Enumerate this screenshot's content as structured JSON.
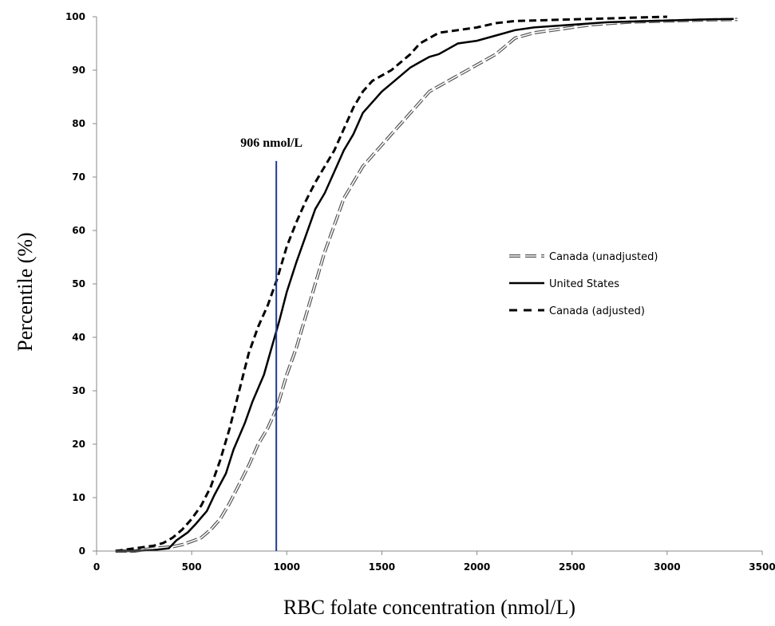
{
  "chart_data": {
    "type": "line",
    "title": "",
    "xlabel": "RBC folate concentration (nmol/L)",
    "ylabel": "Percentile (%)",
    "xlim": [
      0,
      3500
    ],
    "ylim": [
      0,
      100
    ],
    "xticks": [
      0,
      500,
      1000,
      1500,
      2000,
      2500,
      3000,
      3500
    ],
    "yticks": [
      0,
      10,
      20,
      30,
      40,
      50,
      60,
      70,
      80,
      90,
      100
    ],
    "grid": false,
    "legend_placement": "right",
    "annotation": {
      "label": "906 nmol/L",
      "x": 945,
      "y_top": 73,
      "color": "#1f3a93"
    },
    "series": [
      {
        "name": "Canada (unadjusted)",
        "style": "double-dashed",
        "color": "#555555",
        "x": [
          100,
          200,
          300,
          400,
          450,
          500,
          550,
          600,
          650,
          700,
          750,
          800,
          850,
          900,
          950,
          1000,
          1050,
          1100,
          1150,
          1200,
          1250,
          1300,
          1350,
          1400,
          1450,
          1500,
          1550,
          1600,
          1650,
          1700,
          1750,
          1800,
          1850,
          1900,
          1950,
          2000,
          2050,
          2100,
          2150,
          2200,
          2300,
          2400,
          2500,
          2600,
          2800,
          3000,
          3200,
          3370
        ],
        "y": [
          0,
          0,
          0.5,
          0.8,
          1.2,
          1.8,
          2.5,
          4,
          6,
          9,
          12.5,
          16,
          20,
          23,
          27,
          33,
          38,
          44,
          50,
          56,
          61,
          66,
          69,
          72,
          74,
          76,
          78,
          80,
          82,
          84,
          86,
          87,
          88,
          89,
          90,
          91,
          92,
          93,
          94.5,
          96,
          97,
          97.5,
          98,
          98.5,
          99,
          99.2,
          99.4,
          99.5
        ]
      },
      {
        "name": "United States",
        "style": "solid",
        "color": "#000000",
        "x": [
          100,
          200,
          300,
          380,
          420,
          480,
          520,
          580,
          620,
          680,
          720,
          780,
          820,
          880,
          920,
          960,
          1000,
          1050,
          1100,
          1150,
          1200,
          1250,
          1300,
          1350,
          1400,
          1450,
          1500,
          1550,
          1600,
          1650,
          1700,
          1750,
          1800,
          1850,
          1900,
          2000,
          2100,
          2200,
          2300,
          2500,
          2700,
          3000,
          3200,
          3350
        ],
        "y": [
          0,
          0,
          0.2,
          0.5,
          2,
          3.5,
          5,
          7.5,
          10.5,
          14.5,
          19,
          24,
          28,
          33,
          38,
          43,
          48.5,
          54,
          59,
          64,
          67,
          71,
          75,
          78,
          82,
          84,
          86,
          87.5,
          89,
          90.5,
          91.5,
          92.5,
          93,
          94,
          95,
          95.5,
          96.5,
          97.5,
          98,
          98.5,
          99,
          99.3,
          99.5,
          99.6
        ]
      },
      {
        "name": "Canada (adjusted)",
        "style": "dashed",
        "color": "#000000",
        "x": [
          100,
          200,
          300,
          350,
          400,
          450,
          500,
          550,
          600,
          650,
          700,
          750,
          800,
          850,
          900,
          950,
          1000,
          1050,
          1100,
          1150,
          1200,
          1250,
          1300,
          1350,
          1400,
          1450,
          1500,
          1550,
          1600,
          1650,
          1700,
          1750,
          1800,
          1900,
          2000,
          2100,
          2200,
          2400,
          2600,
          2800,
          3000
        ],
        "y": [
          0,
          0.5,
          1,
          1.5,
          2.5,
          4,
          6,
          8.5,
          12,
          17,
          23,
          30,
          37,
          42,
          46,
          51,
          57,
          61.5,
          65.5,
          69,
          72,
          75,
          79,
          83,
          86,
          88,
          89,
          90,
          91.5,
          93,
          95,
          96,
          97,
          97.5,
          98,
          98.8,
          99.2,
          99.4,
          99.6,
          99.8,
          100
        ]
      }
    ]
  }
}
